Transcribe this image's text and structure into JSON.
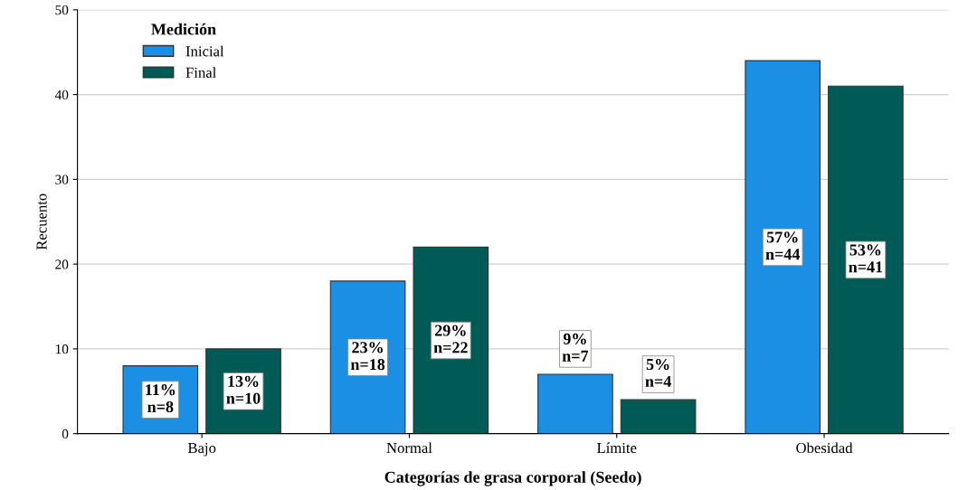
{
  "chart_data": {
    "type": "bar",
    "xlabel": "Categorías de grasa corporal (Seedo)",
    "ylabel": "Recuento",
    "legend_title": "Medición",
    "categories": [
      "Bajo",
      "Normal",
      "Límite",
      "Obesidad"
    ],
    "series": [
      {
        "name": "Inicial",
        "color": "#1b8fe3",
        "values": [
          8,
          18,
          7,
          44
        ],
        "value_labels": [
          "11%\nn=8",
          "23%\nn=18",
          "9%\nn=7",
          "57%\nn=44"
        ]
      },
      {
        "name": "Final",
        "color": "#005b57",
        "values": [
          10,
          22,
          4,
          41
        ],
        "value_labels": [
          "13%\nn=10",
          "29%\nn=22",
          "5%\nn=4",
          "53%\nn=41"
        ]
      }
    ],
    "ylim": [
      0,
      50
    ],
    "yticks": [
      0,
      10,
      20,
      30,
      40,
      50
    ],
    "grid": "y",
    "legend": "top left"
  }
}
